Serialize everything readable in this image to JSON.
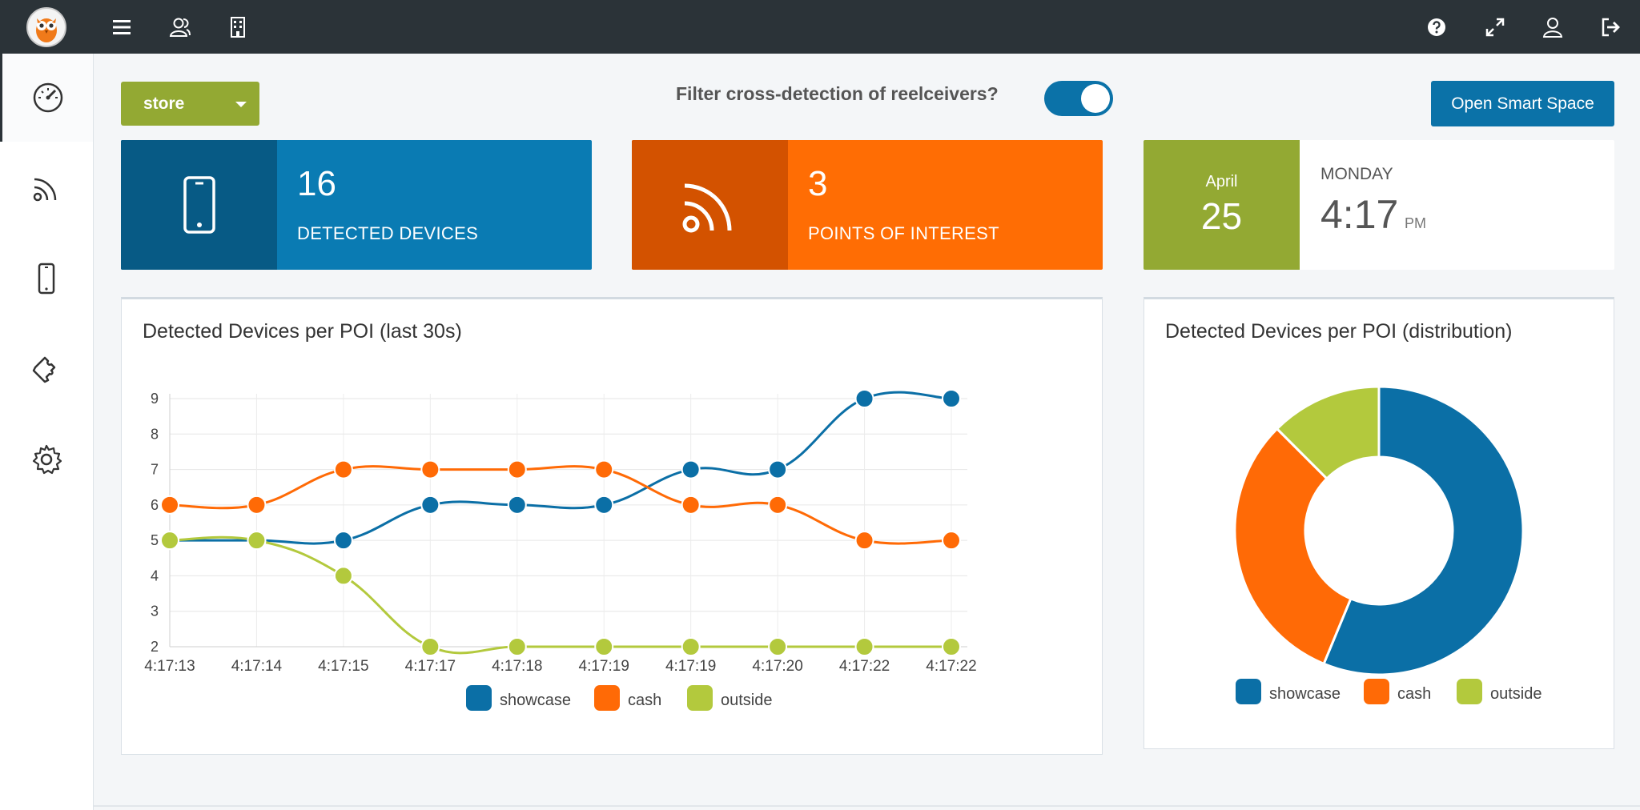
{
  "header": {
    "logo_icon": "owl-logo-icon",
    "left_icons": [
      "menu-icon",
      "users-icon",
      "building-icon"
    ],
    "right_icons": [
      "help-icon",
      "fullscreen-icon",
      "user-icon",
      "logout-icon"
    ]
  },
  "sidebar": {
    "items": [
      {
        "icon": "speedometer-icon",
        "active": true
      },
      {
        "icon": "rss-icon",
        "active": false
      },
      {
        "icon": "mobile-icon",
        "active": false
      },
      {
        "icon": "puzzle-icon",
        "active": false
      },
      {
        "icon": "gear-icon",
        "active": false
      }
    ]
  },
  "controls": {
    "store_label": "store",
    "filter_label": "Filter cross-detection of reelceivers?",
    "filter_on": true,
    "open_button": "Open Smart Space"
  },
  "tiles": {
    "devices": {
      "value": "16",
      "label": "DETECTED DEVICES",
      "icon": "mobile-icon"
    },
    "poi": {
      "value": "3",
      "label": "POINTS OF INTEREST",
      "icon": "rss-icon"
    },
    "date": {
      "month": "April",
      "day": "25",
      "weekday": "MONDAY",
      "time": "4:17",
      "ampm": "PM"
    }
  },
  "colors": {
    "showcase": "#0b6fa6",
    "cash": "#ff6a06",
    "outside": "#b3c93d"
  },
  "chart_data": [
    {
      "type": "line",
      "title": "Detected Devices per POI (last 30s)",
      "categories": [
        "4:17:13",
        "4:17:14",
        "4:17:15",
        "4:17:17",
        "4:17:18",
        "4:17:19",
        "4:17:19",
        "4:17:20",
        "4:17:22",
        "4:17:22"
      ],
      "series": [
        {
          "name": "showcase",
          "values": [
            5,
            5,
            5,
            6,
            6,
            6,
            7,
            7,
            9,
            9
          ]
        },
        {
          "name": "cash",
          "values": [
            6,
            6,
            7,
            7,
            7,
            7,
            6,
            6,
            5,
            5
          ]
        },
        {
          "name": "outside",
          "values": [
            5,
            5,
            4,
            2,
            2,
            2,
            2,
            2,
            2,
            2
          ]
        }
      ],
      "y_ticks": [
        "2",
        "3",
        "4",
        "5",
        "6",
        "7",
        "8",
        "9"
      ],
      "ylim": [
        2,
        9
      ],
      "grid": true,
      "legend": "bottom"
    },
    {
      "type": "pie",
      "title": "Detected Devices per POI (distribution)",
      "labels": [
        "showcase",
        "cash",
        "outside"
      ],
      "values": [
        9,
        5,
        2
      ],
      "donut": true,
      "legend": "bottom"
    }
  ]
}
